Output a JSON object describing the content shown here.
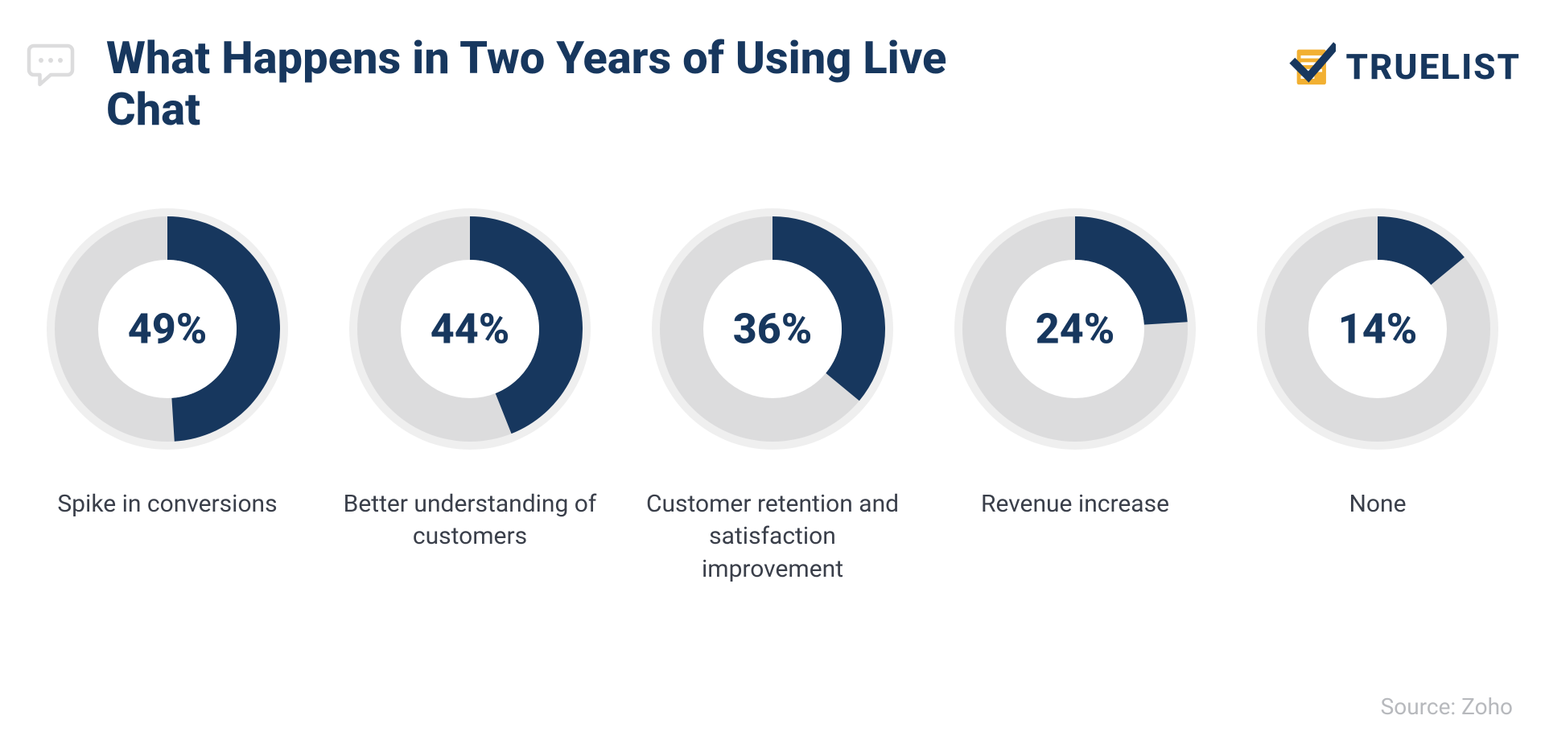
{
  "title": "What Happens in Two Years of Using Live Chat",
  "brand": "TRUELIST",
  "source": "Source: Zoho",
  "colors": {
    "title": "#17375e",
    "ring_fill": "#17375e",
    "ring_track": "#dcdcdd",
    "ring_outer": "#efefef",
    "label_text": "#3a3f4a",
    "source_text": "#b7b9bd",
    "brand_accent": "#f2b032",
    "background": "#ffffff"
  },
  "chart": {
    "type": "donut-multiples",
    "donut_outer_radius": 140,
    "donut_inner_radius": 86,
    "track_outer_radius": 150,
    "start_angle_deg": 0,
    "direction": "clockwise",
    "value_fontsize": 52,
    "label_fontsize": 30,
    "title_fontsize": 56,
    "items": [
      {
        "value": 49,
        "display": "49%",
        "label": "Spike in conversions"
      },
      {
        "value": 44,
        "display": "44%",
        "label": "Better understanding of customers"
      },
      {
        "value": 36,
        "display": "36%",
        "label": "Customer retention and satisfaction improvement"
      },
      {
        "value": 24,
        "display": "24%",
        "label": "Revenue increase"
      },
      {
        "value": 14,
        "display": "14%",
        "label": "None"
      }
    ]
  }
}
